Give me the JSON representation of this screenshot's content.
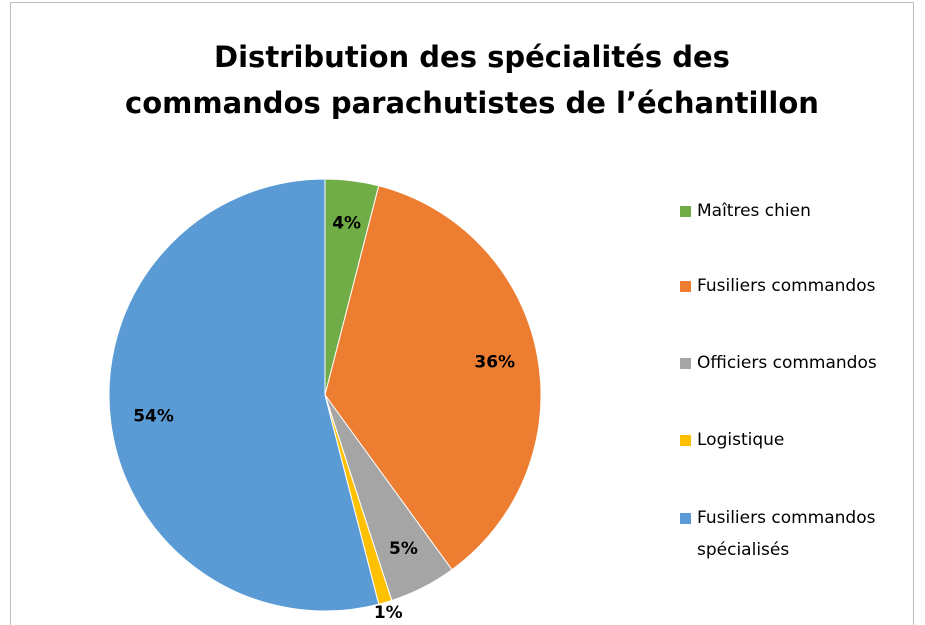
{
  "chart_data": {
    "type": "pie",
    "title": "Distribution des spécialités des commandos parachutistes de l’échantillon",
    "categories": [
      "Maîtres chien",
      "Fusiliers commandos",
      "Officiers commandos",
      "Logistique",
      "Fusiliers commandos spécialisés"
    ],
    "values": [
      4,
      36,
      5,
      1,
      54
    ],
    "value_labels": [
      "4%",
      "36%",
      "5%",
      "1%",
      "54%"
    ],
    "colors": [
      "#70ad47",
      "#ed7d31",
      "#a5a5a5",
      "#ffc000",
      "#5b9bd5"
    ],
    "legend": "right"
  }
}
